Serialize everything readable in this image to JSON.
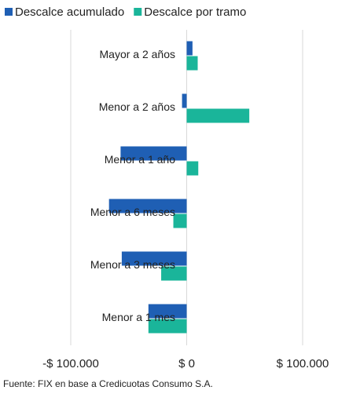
{
  "chart_data": {
    "type": "hbar",
    "categories": [
      "Mayor a 2 años",
      "Menor a 2 años",
      "Menor a 1 año",
      "Menor a 6 meses",
      "Menor a 3 meses",
      "Menor a 1 mes"
    ],
    "series": [
      {
        "name": "Descalce acumulado",
        "color": "#1f5fb4",
        "values": [
          5000,
          -4000,
          -57000,
          -67000,
          -56000,
          -33000
        ]
      },
      {
        "name": "Descalce por tramo",
        "color": "#1ab59a",
        "values": [
          9500,
          54000,
          10000,
          -11500,
          -22000,
          -33000
        ]
      }
    ],
    "xlim": [
      -100000,
      100000
    ],
    "xticks": [
      {
        "value": -100000,
        "label": "-$ 100.000"
      },
      {
        "value": 0,
        "label": "$ 0"
      },
      {
        "value": 100000,
        "label": "$ 100.000"
      }
    ],
    "grid": true,
    "legend": "top",
    "source": "Fuente: FIX en base a Credicuotas Consumo S.A."
  }
}
